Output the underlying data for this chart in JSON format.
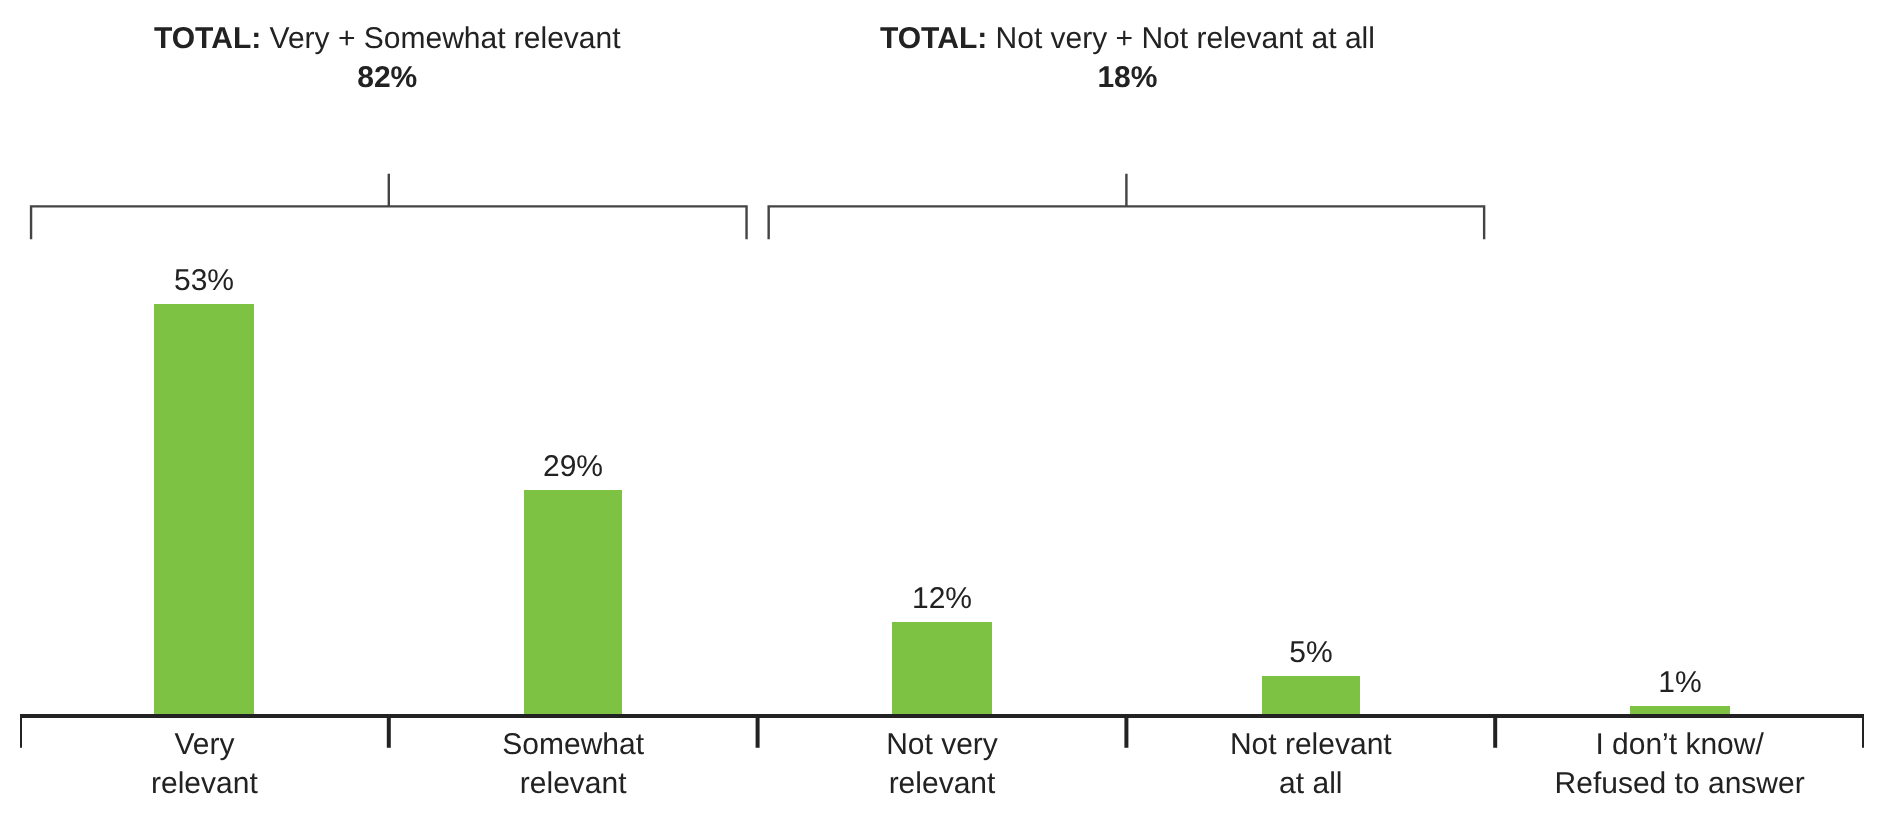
{
  "chart_data": {
    "type": "bar",
    "categories": [
      "Very\nrelevant",
      "Somewhat\nrelevant",
      "Not very\nrelevant",
      "Not relevant\nat all",
      "I don’t know/\nRefused to answer"
    ],
    "values": [
      53,
      29,
      12,
      5,
      1
    ],
    "value_labels": [
      "53%",
      "29%",
      "12%",
      "5%",
      "1%"
    ],
    "color": "#7dc242",
    "annotations": [
      "TOTAL: Very + Somewhat relevant",
      "82%",
      "TOTAL: Not very + Not relevant at all",
      "18%"
    ]
  }
}
